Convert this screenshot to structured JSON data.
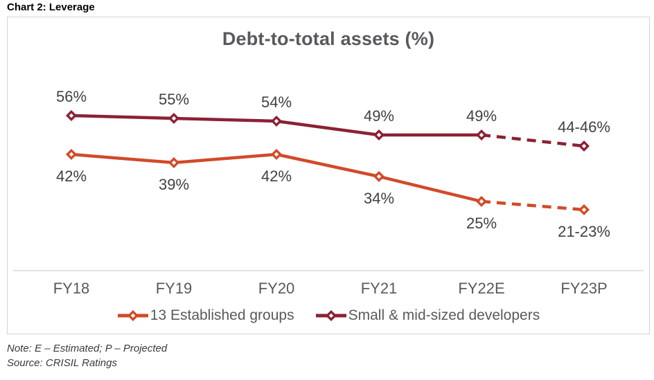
{
  "header": {
    "title": "Chart 2: Leverage"
  },
  "chart_data": {
    "type": "line",
    "title": "Debt-to-total assets (%)",
    "categories": [
      "FY18",
      "FY19",
      "FY20",
      "FY21",
      "FY22E",
      "FY23P"
    ],
    "dashed_from_index": 4,
    "legend_position": "bottom",
    "grid": "off",
    "y_axis_visible": false,
    "ylim": [
      0,
      70
    ],
    "series": [
      {
        "name": "13 Established groups",
        "color": "#D14A28",
        "values": [
          42,
          39,
          42,
          34,
          25,
          22
        ],
        "labels": [
          "42%",
          "39%",
          "42%",
          "34%",
          "25%",
          "21-23%"
        ],
        "label_position": "below",
        "marker": "diamond-open"
      },
      {
        "name": "Small & mid-sized developers",
        "color": "#8C2133",
        "values": [
          56,
          55,
          54,
          49,
          49,
          45
        ],
        "labels": [
          "56%",
          "55%",
          "54%",
          "49%",
          "49%",
          "44-46%"
        ],
        "label_position": "above",
        "marker": "diamond-open"
      }
    ]
  },
  "notes": {
    "note": "Note: E – Estimated; P – Projected",
    "source": "Source: CRISIL Ratings"
  },
  "colors": {
    "axis_line": "#D9D9D9",
    "frame_border": "#D2D2D2",
    "title_text": "#58595B",
    "data_label_text": "#404040",
    "axis_label_text": "#595959"
  }
}
